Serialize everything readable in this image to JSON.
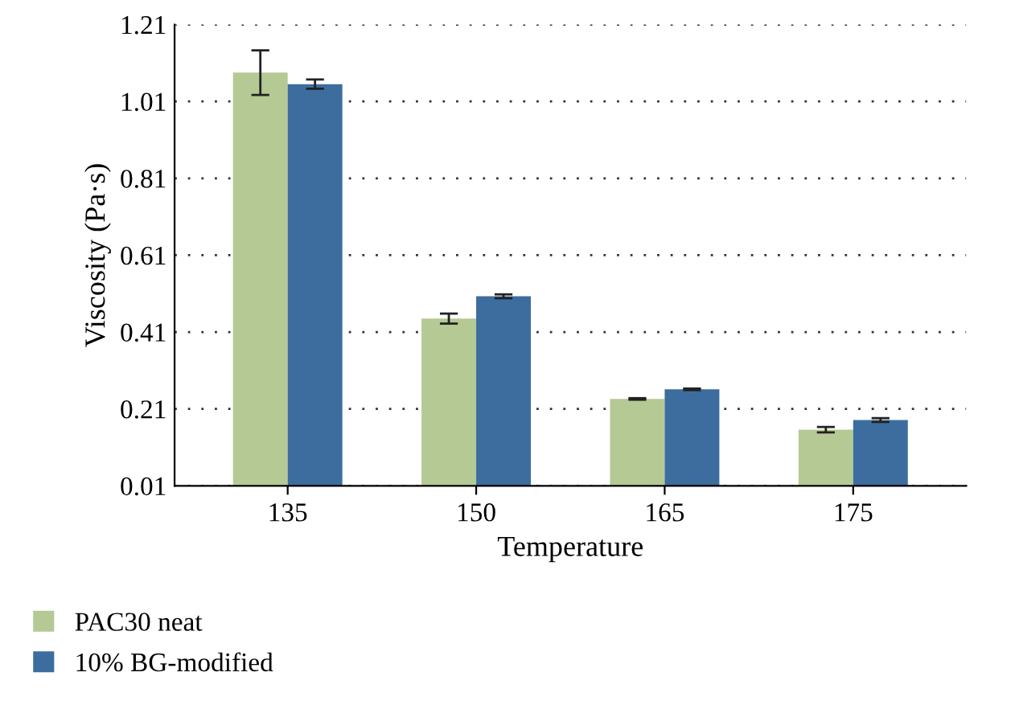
{
  "chart_data": {
    "type": "bar",
    "xlabel": "Temperature",
    "ylabel": "Viscosity (Pa·s)",
    "categories": [
      "135",
      "150",
      "165",
      "175"
    ],
    "series": [
      {
        "name": "PAC30 neat",
        "color": "#b5c994",
        "values": [
          1.085,
          0.445,
          0.236,
          0.156
        ],
        "errors": [
          0.058,
          0.013,
          0.002,
          0.007
        ]
      },
      {
        "name": "10% BG-modified",
        "color": "#3c6d9e",
        "values": [
          1.055,
          0.503,
          0.261,
          0.181
        ],
        "errors": [
          0.012,
          0.005,
          0.002,
          0.005
        ]
      }
    ],
    "ylim": [
      0.01,
      1.21
    ],
    "yticks": [
      {
        "value": 0.01,
        "label": "0.01"
      },
      0.21,
      0.41,
      0.61,
      0.81,
      1.01,
      1.21
    ],
    "grid": "y",
    "legend": "bottom"
  }
}
